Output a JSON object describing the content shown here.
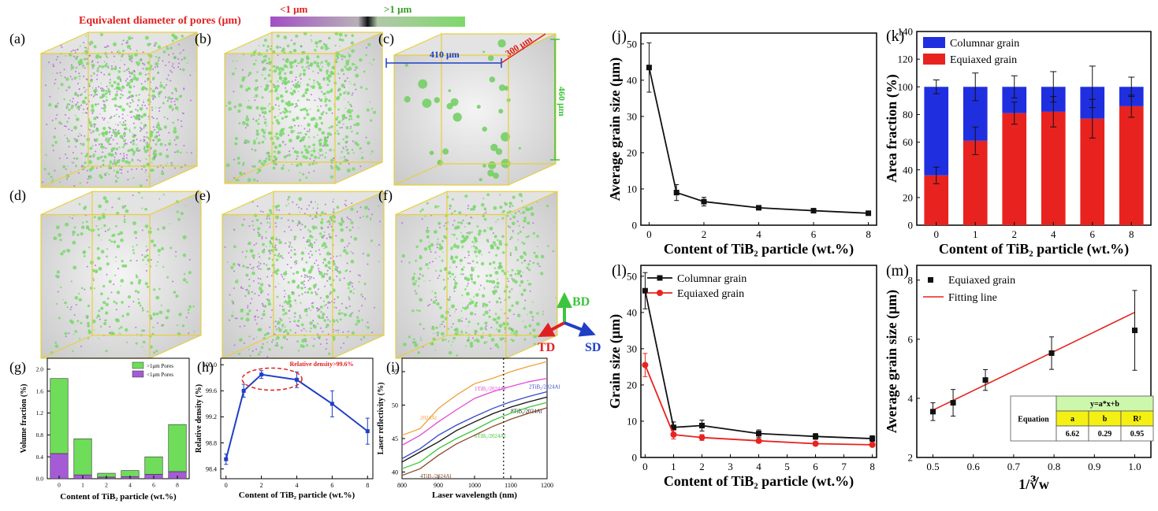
{
  "legend_bar": {
    "title": "Equivalent diameter of pores (μm)",
    "lt": "<1 μm",
    "gt": ">1 μm",
    "colors": {
      "small": "#a24fc3",
      "large": "#7ed96a",
      "title": "#e02020"
    }
  },
  "panel_letters": {
    "a": "(a)",
    "b": "(b)",
    "c": "(c)",
    "d": "(d)",
    "e": "(e)",
    "f": "(f)",
    "g": "(g)",
    "h": "(h)",
    "i": "(i)",
    "j": "(j)",
    "k": "(k)",
    "l": "(l)",
    "m": "(m)"
  },
  "cube_c": {
    "dim_x": "410 μm",
    "dim_y": "300 μm",
    "dim_z": "460 μm"
  },
  "axes_indicator": {
    "bd": "BD",
    "td": "TD",
    "sd": "SD"
  },
  "colors": {
    "black": "#111111",
    "red": "#e8231f",
    "blue": "#1f2fe0",
    "green": "#6fdc5a",
    "purple": "#a65bd6",
    "navy": "#1f3fc4"
  },
  "chart_data": [
    {
      "id": "g",
      "type": "bar",
      "stacked": true,
      "categories": [
        "0",
        "1",
        "2",
        "4",
        "6",
        "8"
      ],
      "series": [
        {
          "name": "<1μm Pores",
          "values": [
            0.46,
            0.07,
            0.03,
            0.04,
            0.08,
            0.13
          ]
        },
        {
          "name": ">1μm Pores",
          "values": [
            1.37,
            0.66,
            0.07,
            0.11,
            0.32,
            0.86
          ]
        }
      ],
      "xlabel": "Content of TiB₂ particle (wt.%)",
      "ylabel": "Volume fraction (%)",
      "ylim": [
        0,
        2.2
      ],
      "yticks": [
        "0.0",
        "0.4",
        "0.8",
        "1.2",
        "1.6",
        "2.0"
      ],
      "legend": "top-right"
    },
    {
      "id": "h",
      "type": "line",
      "x": [
        0,
        1,
        2,
        4,
        6,
        8
      ],
      "y": [
        98.55,
        99.6,
        99.85,
        99.77,
        99.4,
        98.98
      ],
      "err": [
        0.08,
        0.1,
        0.06,
        0.12,
        0.2,
        0.2
      ],
      "annotation": "Relative density>99.6%",
      "xlabel": "Content of TiB₂ particle (wt.%)",
      "ylabel": "Relative density (%)",
      "ylim": [
        98.25,
        100.1
      ],
      "yticks": [
        "98.4",
        "98.8",
        "99.2",
        "99.6",
        "100.0"
      ],
      "xticks": [
        "0",
        "2",
        "4",
        "6",
        "8"
      ]
    },
    {
      "id": "i",
      "type": "line",
      "x": [
        800,
        850,
        900,
        950,
        1000,
        1050,
        1100,
        1150,
        1200
      ],
      "series": [
        {
          "name": "2024Al",
          "values": [
            45.5,
            46.5,
            49.5,
            51.5,
            53.2,
            54.0,
            55.0,
            55.8,
            56.5
          ]
        },
        {
          "name": "1TiB₂/2024Al",
          "values": [
            44.0,
            45.5,
            47.5,
            49.3,
            51.0,
            52.0,
            52.8,
            53.5,
            54.0
          ]
        },
        {
          "name": "2TiB₂/2024Al",
          "values": [
            42.0,
            43.5,
            45.5,
            47.0,
            48.3,
            49.5,
            50.5,
            51.3,
            52.0
          ]
        },
        {
          "name": "8TiB₂/2024Al",
          "values": [
            41.5,
            43.0,
            44.5,
            46.2,
            47.5,
            48.7,
            49.7,
            50.5,
            51.2
          ]
        },
        {
          "name": "6TiB₂/2024Al",
          "values": [
            40.5,
            41.5,
            43.5,
            45.0,
            46.3,
            47.7,
            48.8,
            49.7,
            50.4
          ]
        },
        {
          "name": "4TiB₂/2024Al",
          "values": [
            39.5,
            40.5,
            42.5,
            44.2,
            45.5,
            46.8,
            47.9,
            48.8,
            49.6
          ]
        }
      ],
      "xlabel": "Laser wavelength (nm)",
      "ylabel": "Laser reflectivity (%)",
      "xlim": [
        800,
        1200
      ],
      "xticks": [
        "800",
        "900",
        "1000",
        "1100",
        "1200"
      ],
      "ylim": [
        39,
        57
      ],
      "yticks": [
        "40",
        "45",
        "50",
        "55"
      ],
      "marker_x": 1080
    },
    {
      "id": "j",
      "type": "line",
      "x": [
        0,
        1,
        2,
        4,
        6,
        8
      ],
      "y": [
        43.5,
        9.0,
        6.5,
        4.8,
        4.0,
        3.3
      ],
      "err": [
        6.8,
        2.2,
        1.2,
        0.3,
        0.3,
        0.3
      ],
      "xlabel": "Content of TiB₂ particle (wt.%)",
      "ylabel": "Average grain size (μm)",
      "xlim": [
        -0.3,
        8.3
      ],
      "ylim": [
        0,
        50
      ],
      "yticks": [
        "0",
        "10",
        "20",
        "30",
        "40",
        "50"
      ],
      "xticks": [
        "0",
        "2",
        "4",
        "6",
        "8"
      ]
    },
    {
      "id": "k",
      "type": "bar",
      "stacked": true,
      "categories": [
        "0",
        "1",
        "2",
        "4",
        "6",
        "8"
      ],
      "series": [
        {
          "name": "Equiaxed grain",
          "values": [
            36,
            61,
            81,
            82,
            77,
            86
          ]
        },
        {
          "name": "Columnar grain",
          "values": [
            64,
            39,
            19,
            18,
            23,
            14
          ]
        }
      ],
      "err_low": [
        6,
        10,
        8,
        11,
        14,
        8
      ],
      "err_top": [
        5,
        10,
        8,
        11,
        15,
        7
      ],
      "xlabel": "Content of TiB₂ particle (wt.%)",
      "ylabel": "Area fraction (%)",
      "ylim": [
        0,
        140
      ],
      "yticks": [
        "0",
        "20",
        "40",
        "60",
        "80",
        "100",
        "120",
        "140"
      ],
      "legend": "top-left"
    },
    {
      "id": "l",
      "type": "line",
      "x": [
        0,
        1,
        2,
        4,
        6,
        8
      ],
      "series": [
        {
          "name": "Columnar grain",
          "values": [
            46.0,
            8.3,
            8.8,
            6.6,
            5.8,
            5.2
          ],
          "err": [
            5.0,
            1.5,
            1.5,
            1.0,
            0.8,
            0.8
          ]
        },
        {
          "name": "Equiaxed grain",
          "values": [
            25.5,
            6.3,
            5.5,
            4.6,
            3.8,
            3.5
          ],
          "err": [
            3.2,
            1.2,
            0.8,
            0.6,
            0.5,
            0.4
          ]
        }
      ],
      "xlabel": "Content of TiB₂ particle (wt.%)",
      "ylabel": "Grain size (μm)",
      "xlim": [
        -0.15,
        8.15
      ],
      "ylim": [
        0,
        50
      ],
      "yticks": [
        "0",
        "10",
        "20",
        "30",
        "40",
        "50"
      ],
      "xticks": [
        "0",
        "1",
        "2",
        "3",
        "4",
        "5",
        "6",
        "7",
        "8"
      ],
      "legend": "top-left"
    },
    {
      "id": "m",
      "type": "scatter",
      "x": [
        0.5,
        0.55,
        0.63,
        0.794,
        1.0
      ],
      "y": [
        3.55,
        3.85,
        4.62,
        5.53,
        6.3
      ],
      "err": [
        0.3,
        0.45,
        0.35,
        0.55,
        1.35
      ],
      "fit": {
        "x": [
          0.5,
          1.0
        ],
        "y": [
          3.6,
          6.91
        ]
      },
      "series_names": [
        "Equiaxed grain",
        "Fitting line"
      ],
      "xlabel": "1/∛w",
      "ylabel": "Average grain size (μm)",
      "xlim": [
        0.46,
        1.04
      ],
      "xticks": [
        "0.5",
        "0.6",
        "0.7",
        "0.8",
        "0.9",
        "1.0"
      ],
      "ylim": [
        2,
        8.5
      ],
      "yticks": [
        "2",
        "4",
        "6",
        "8"
      ],
      "legend": "top-left",
      "table": {
        "label": "Equation",
        "formula": "y=a*x+b",
        "h": [
          "a",
          "b",
          "R²"
        ],
        "v": [
          "6.62",
          "0.29",
          "0.95"
        ]
      }
    }
  ]
}
